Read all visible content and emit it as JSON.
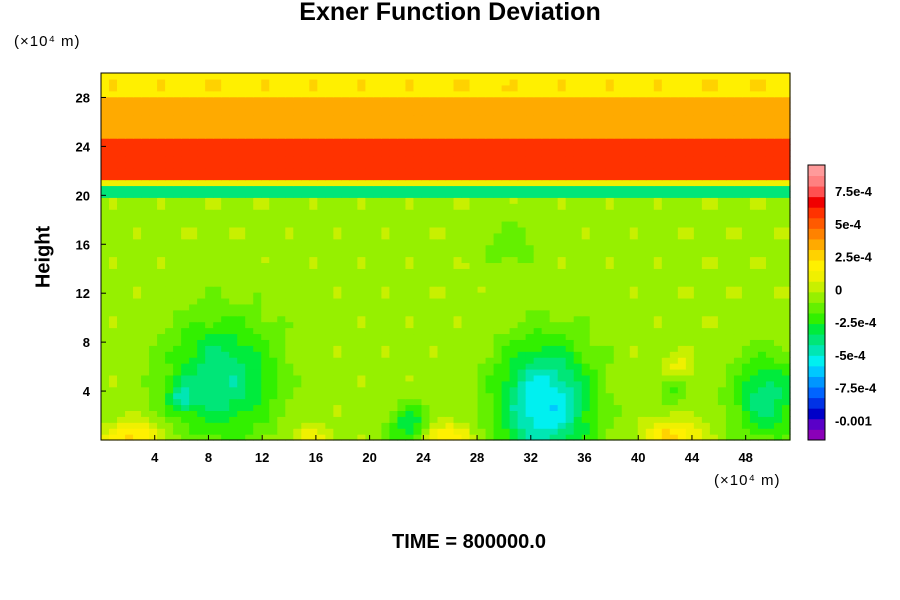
{
  "chart_data": {
    "type": "heatmap",
    "title": "Exner Function Deviation",
    "x_unit": "(×10⁴ m)",
    "y_unit": "(×10⁴ m)",
    "ylabel": "Height",
    "xlabel": "",
    "time_label": "TIME = 800000.0",
    "xlim": [
      0,
      51.3
    ],
    "ylim": [
      0,
      30
    ],
    "x_ticks": [
      4,
      8,
      12,
      16,
      20,
      24,
      28,
      32,
      36,
      40,
      44,
      48
    ],
    "y_ticks": [
      4,
      8,
      12,
      16,
      20,
      24,
      28
    ],
    "colorbar": {
      "vmin": -0.00115,
      "vmax": 0.00095,
      "tick_values": [
        0.00075,
        0.0005,
        0.00025,
        0,
        -0.00025,
        -0.0005,
        -0.00075,
        -0.001
      ],
      "tick_labels": [
        "7.5e-4",
        "5e-4",
        "2.5e-4",
        "0",
        "-2.5e-4",
        "-5e-4",
        "-7.5e-4",
        "-0.001"
      ],
      "colors": [
        "#8a00b8",
        "#5a00c8",
        "#0000c8",
        "#0032e6",
        "#0064ff",
        "#0096ff",
        "#00c8ff",
        "#00f0f0",
        "#00e6b4",
        "#00e678",
        "#00eb3c",
        "#32f000",
        "#64f000",
        "#96f000",
        "#c8f000",
        "#f0f000",
        "#fff000",
        "#ffd200",
        "#ffaa00",
        "#ff8200",
        "#ff5a00",
        "#ff3200",
        "#f00000",
        "#ff5050",
        "#ff8080",
        "#ff9a9a"
      ]
    },
    "field": {
      "background": -4e-05,
      "layers": [
        {
          "y_from": 19.6,
          "y_to": 20.9,
          "value": -0.00038
        },
        {
          "y_from": 20.9,
          "y_to": 21.5,
          "value": 0.00012
        },
        {
          "y_from": 21.5,
          "y_to": 24.8,
          "value": 0.00058
        },
        {
          "y_from": 24.8,
          "y_to": 28.0,
          "value": 0.00035
        },
        {
          "y_from": 28.0,
          "y_to": 30.0,
          "value": 0.0002
        }
      ],
      "blobs": [
        {
          "x": 9.0,
          "y": 5.0,
          "amplitude": -0.00038,
          "rx": 4.0,
          "ry": 5.0
        },
        {
          "x": 33.0,
          "y": 3.0,
          "amplitude": -0.00055,
          "rx": 3.5,
          "ry": 5.0
        },
        {
          "x": 49.5,
          "y": 3.5,
          "amplitude": -0.00035,
          "rx": 2.5,
          "ry": 3.5
        },
        {
          "x": 23.0,
          "y": 1.0,
          "amplitude": -0.0003,
          "rx": 1.5,
          "ry": 2.0
        },
        {
          "x": 6.0,
          "y": 3.5,
          "amplitude": -0.00025,
          "rx": 1.0,
          "ry": 1.2
        },
        {
          "x": 2.5,
          "y": 0.3,
          "amplitude": 0.0003,
          "rx": 2.0,
          "ry": 1.2
        },
        {
          "x": 25.5,
          "y": 0.3,
          "amplitude": 0.00028,
          "rx": 2.0,
          "ry": 1.0
        },
        {
          "x": 42.5,
          "y": 0.3,
          "amplitude": 0.0003,
          "rx": 2.0,
          "ry": 1.2
        },
        {
          "x": 15.5,
          "y": 0.3,
          "amplitude": 0.00015,
          "rx": 1.5,
          "ry": 0.9
        },
        {
          "x": 30.5,
          "y": 16.0,
          "amplitude": -0.00012,
          "rx": 2.0,
          "ry": 1.8
        },
        {
          "x": 43.0,
          "y": 6.0,
          "amplitude": 0.00012,
          "rx": 1.0,
          "ry": 1.0
        },
        {
          "x": 42.5,
          "y": 4.0,
          "amplitude": -0.00015,
          "rx": 1.0,
          "ry": 1.0
        }
      ]
    }
  }
}
